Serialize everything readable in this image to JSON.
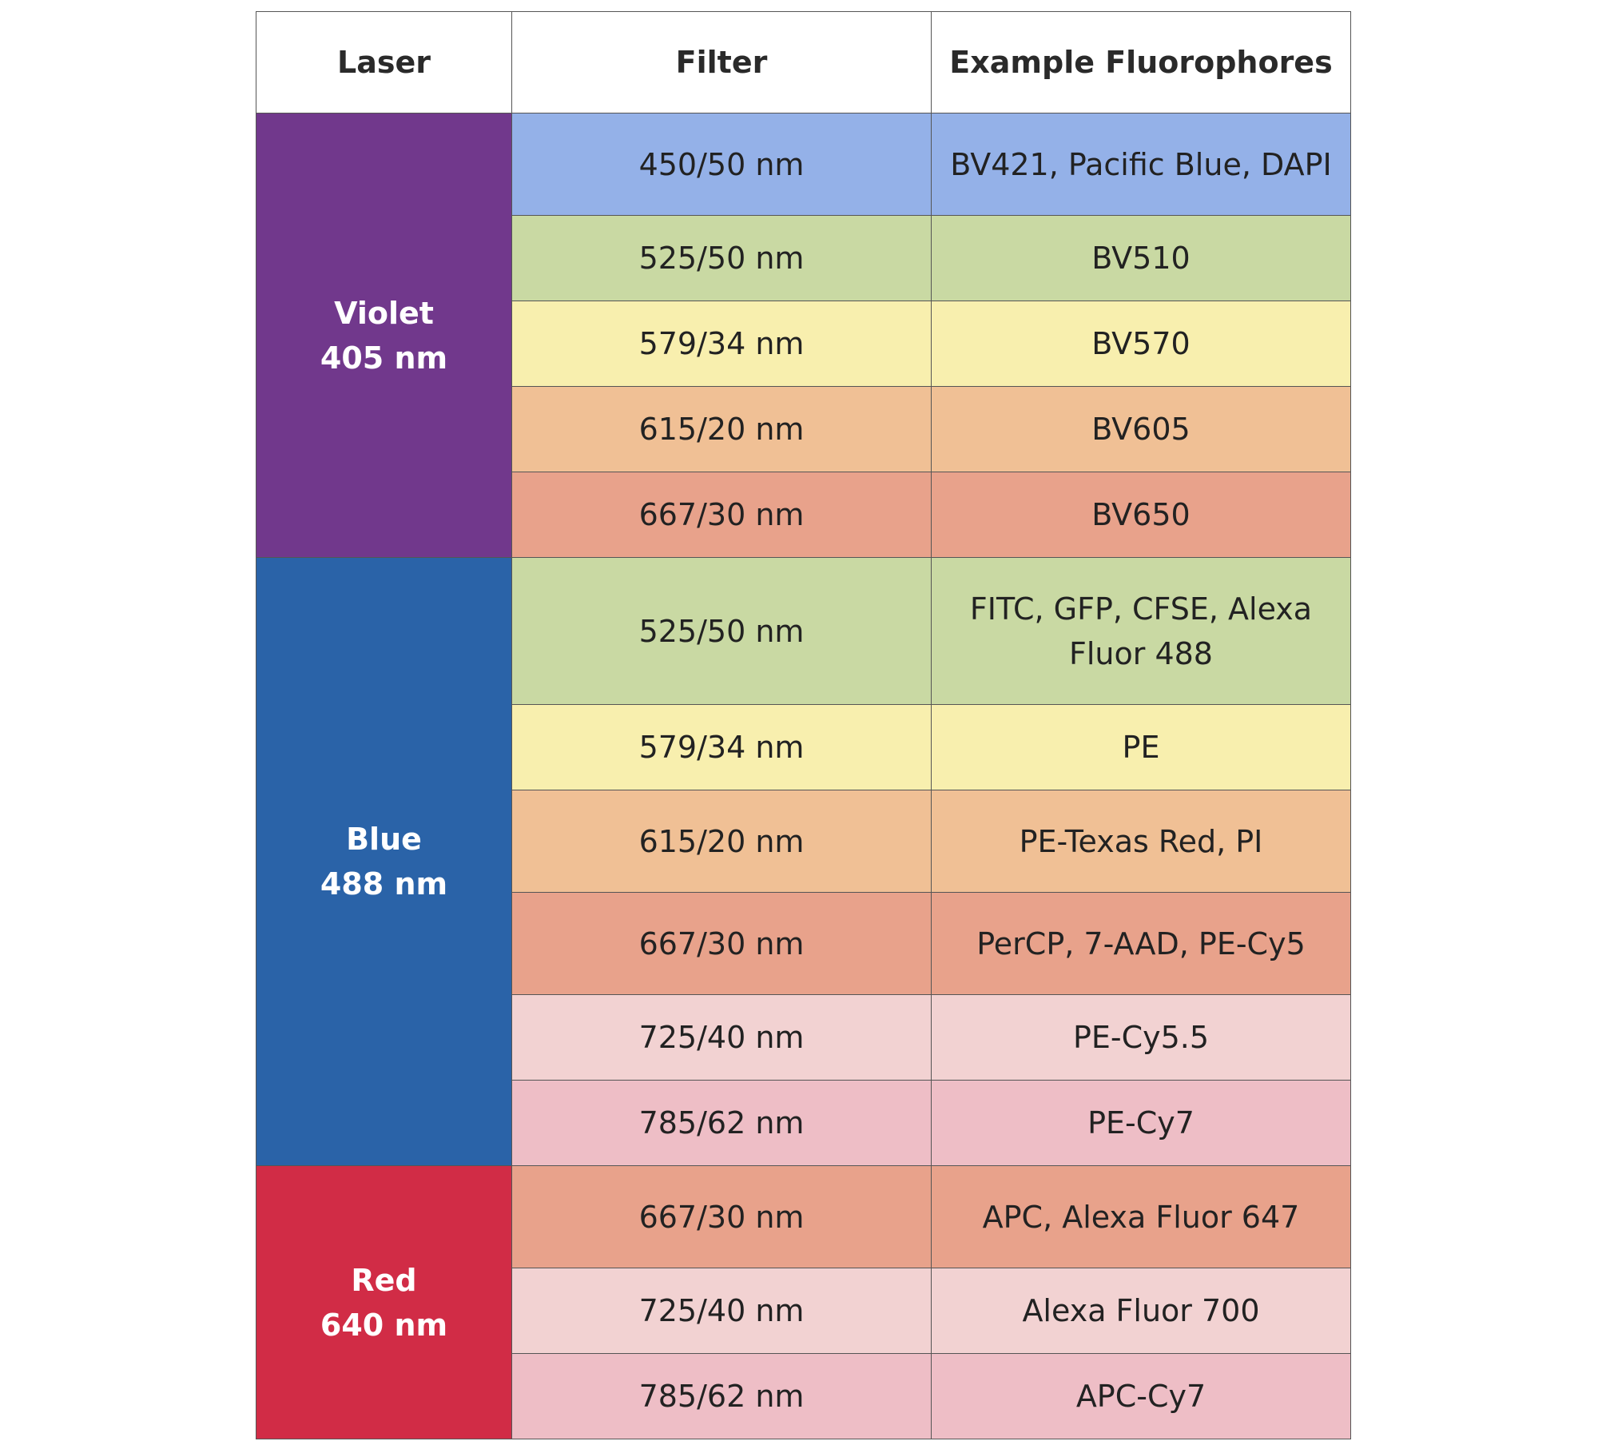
{
  "headers": {
    "laser": "Laser",
    "filter": "Filter",
    "fluorophores": "Example Fluorophores"
  },
  "groups": [
    {
      "name": "Violet",
      "wavelength": "405 nm",
      "color": "#71388c",
      "rows": [
        {
          "filter": "450/50 nm",
          "fluorophores": "BV421, Pacific Blue, DAPI",
          "color": "#94b1e8"
        },
        {
          "filter": "525/50 nm",
          "fluorophores": "BV510",
          "color": "#c9d9a3"
        },
        {
          "filter": "579/34 nm",
          "fluorophores": "BV570",
          "color": "#f8efae"
        },
        {
          "filter": "615/20 nm",
          "fluorophores": "BV605",
          "color": "#f0c095"
        },
        {
          "filter": "667/30 nm",
          "fluorophores": "BV650",
          "color": "#e8a28b"
        }
      ]
    },
    {
      "name": "Blue",
      "wavelength": "488 nm",
      "color": "#2a63a8",
      "rows": [
        {
          "filter": "525/50 nm",
          "fluorophores": "FITC, GFP, CFSE, Alexa Fluor 488",
          "color": "#c9d9a3"
        },
        {
          "filter": "579/34 nm",
          "fluorophores": "PE",
          "color": "#f8efae"
        },
        {
          "filter": "615/20 nm",
          "fluorophores": "PE-Texas Red, PI",
          "color": "#f0c095"
        },
        {
          "filter": "667/30 nm",
          "fluorophores": "PerCP, 7-AAD, PE-Cy5",
          "color": "#e8a28b"
        },
        {
          "filter": "725/40 nm",
          "fluorophores": "PE-Cy5.5",
          "color": "#f2d2d2"
        },
        {
          "filter": "785/62 nm",
          "fluorophores": "PE-Cy7",
          "color": "#eebec6"
        }
      ]
    },
    {
      "name": "Red",
      "wavelength": "640 nm",
      "color": "#d12c46",
      "rows": [
        {
          "filter": "667/30 nm",
          "fluorophores": "APC, Alexa Fluor 647",
          "color": "#e8a28b"
        },
        {
          "filter": "725/40 nm",
          "fluorophores": "Alexa Fluor 700",
          "color": "#f2d2d2"
        },
        {
          "filter": "785/62 nm",
          "fluorophores": "APC-Cy7",
          "color": "#eebec6"
        }
      ]
    }
  ]
}
